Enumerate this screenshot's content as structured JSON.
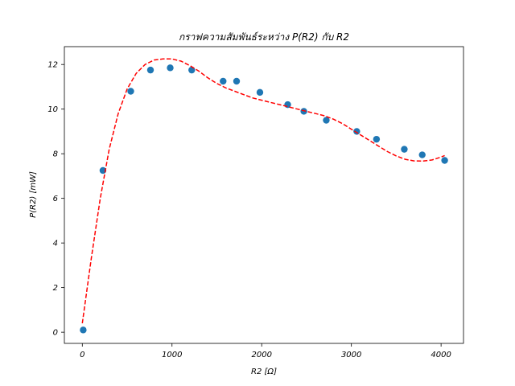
{
  "chart_data": {
    "type": "scatter",
    "title": "กราฟความสัมพันธ์ระหว่าง P(R2) กับ R2",
    "xlabel": "R2 [Ω]",
    "ylabel": "P(R2) [mW]",
    "xlim": [
      -200,
      4250
    ],
    "ylim": [
      -0.5,
      12.8
    ],
    "x_ticks": [
      0,
      1000,
      2000,
      3000,
      4000
    ],
    "y_ticks": [
      0,
      2,
      4,
      6,
      8,
      10,
      12
    ],
    "grid": false,
    "series": [
      {
        "kind": "points",
        "color": "#1f77b4",
        "x": [
          10,
          230,
          540,
          760,
          980,
          1220,
          1570,
          1720,
          1980,
          2290,
          2470,
          2720,
          3060,
          3280,
          3590,
          3790,
          4040
        ],
        "y": [
          0.1,
          7.25,
          10.8,
          11.75,
          11.85,
          11.75,
          11.25,
          11.25,
          10.75,
          10.2,
          9.9,
          9.5,
          9.0,
          8.65,
          8.2,
          7.95,
          7.7
        ]
      },
      {
        "kind": "fit-line",
        "color": "#ff0000",
        "dashed": true,
        "x": [
          0,
          100,
          200,
          300,
          400,
          500,
          600,
          700,
          800,
          900,
          1000,
          1100,
          1200,
          1300,
          1400,
          1500,
          1600,
          1700,
          1800,
          1900,
          2000,
          2100,
          2200,
          2300,
          2400,
          2500,
          2600,
          2700,
          2800,
          2900,
          3000,
          3100,
          3200,
          3300,
          3400,
          3500,
          3600,
          3700,
          3800,
          3900,
          4000,
          4040
        ],
        "y": [
          0.4,
          3.3,
          6.0,
          8.2,
          9.8,
          10.9,
          11.6,
          12.0,
          12.2,
          12.25,
          12.25,
          12.15,
          11.95,
          11.7,
          11.4,
          11.15,
          10.95,
          10.8,
          10.65,
          10.5,
          10.4,
          10.3,
          10.2,
          10.1,
          10.0,
          9.9,
          9.8,
          9.7,
          9.55,
          9.35,
          9.1,
          8.85,
          8.6,
          8.35,
          8.1,
          7.9,
          7.75,
          7.68,
          7.67,
          7.72,
          7.85,
          7.92
        ]
      }
    ]
  }
}
